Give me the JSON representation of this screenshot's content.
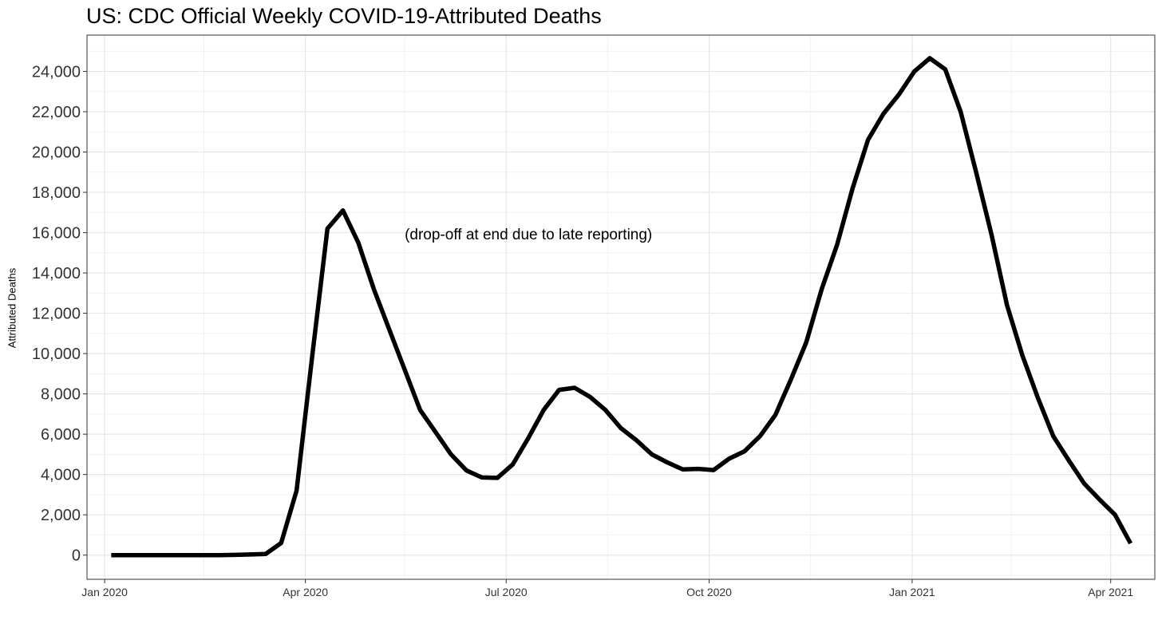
{
  "chart_data": {
    "type": "line",
    "title": "US: CDC Official Weekly COVID-19-Attributed Deaths",
    "xlabel": "",
    "ylabel": "Attributed Deaths",
    "annotation": "(drop-off at end due to late reporting)",
    "xlim": [
      "2019-12-24",
      "2021-04-21"
    ],
    "ylim": [
      -1200,
      25800
    ],
    "grid": true,
    "line_color": "#000000",
    "x_ticks": [
      {
        "date": "2020-01-01",
        "label": "Jan 2020"
      },
      {
        "date": "2020-04-01",
        "label": "Apr 2020"
      },
      {
        "date": "2020-07-01",
        "label": "Jul 2020"
      },
      {
        "date": "2020-10-01",
        "label": "Oct 2020"
      },
      {
        "date": "2021-01-01",
        "label": "Jan 2021"
      },
      {
        "date": "2021-04-01",
        "label": "Apr 2021"
      }
    ],
    "y_ticks": [
      {
        "value": 0,
        "label": "0"
      },
      {
        "value": 2000,
        "label": "2,000"
      },
      {
        "value": 4000,
        "label": "4,000"
      },
      {
        "value": 6000,
        "label": "6,000"
      },
      {
        "value": 8000,
        "label": "8,000"
      },
      {
        "value": 10000,
        "label": "10,000"
      },
      {
        "value": 12000,
        "label": "12,000"
      },
      {
        "value": 14000,
        "label": "14,000"
      },
      {
        "value": 16000,
        "label": "16,000"
      },
      {
        "value": 18000,
        "label": "18,000"
      },
      {
        "value": 20000,
        "label": "20,000"
      },
      {
        "value": 22000,
        "label": "22,000"
      },
      {
        "value": 24000,
        "label": "24,000"
      }
    ],
    "series": [
      {
        "x": [
          "2020-01-04",
          "2020-01-11",
          "2020-01-18",
          "2020-01-25",
          "2020-02-01",
          "2020-02-08",
          "2020-02-15",
          "2020-02-22",
          "2020-02-29",
          "2020-03-07",
          "2020-03-14",
          "2020-03-21",
          "2020-03-28",
          "2020-04-04",
          "2020-04-11",
          "2020-04-18",
          "2020-04-25",
          "2020-05-02",
          "2020-05-09",
          "2020-05-16",
          "2020-05-23",
          "2020-05-30",
          "2020-06-06",
          "2020-06-13",
          "2020-06-20",
          "2020-06-27",
          "2020-07-04",
          "2020-07-11",
          "2020-07-18",
          "2020-07-25",
          "2020-08-01",
          "2020-08-08",
          "2020-08-15",
          "2020-08-22",
          "2020-08-29",
          "2020-09-05",
          "2020-09-12",
          "2020-09-19",
          "2020-09-26",
          "2020-10-03",
          "2020-10-10",
          "2020-10-17",
          "2020-10-24",
          "2020-10-31",
          "2020-11-07",
          "2020-11-14",
          "2020-11-21",
          "2020-11-28",
          "2020-12-05",
          "2020-12-12",
          "2020-12-19",
          "2020-12-26",
          "2021-01-02",
          "2021-01-09",
          "2021-01-16",
          "2021-01-23",
          "2021-01-30",
          "2021-02-06",
          "2021-02-13",
          "2021-02-20",
          "2021-02-27",
          "2021-03-06",
          "2021-03-13",
          "2021-03-20",
          "2021-03-27",
          "2021-04-03",
          "2021-04-10"
        ],
        "y": [
          0,
          0,
          0,
          0,
          0,
          0,
          0,
          0,
          10,
          30,
          60,
          600,
          3200,
          9800,
          16200,
          17100,
          15500,
          13200,
          11200,
          9200,
          7200,
          6100,
          5000,
          4200,
          3850,
          3830,
          4500,
          5800,
          7200,
          8200,
          8300,
          7850,
          7200,
          6300,
          5700,
          5000,
          4600,
          4250,
          4280,
          4220,
          4780,
          5150,
          5900,
          6950,
          8700,
          10550,
          13200,
          15400,
          18200,
          20600,
          21900,
          22850,
          24000,
          24650,
          24100,
          22000,
          19000,
          15900,
          12400,
          9900,
          7800,
          5900,
          4700,
          3550,
          2750,
          2000,
          580
        ]
      }
    ]
  }
}
